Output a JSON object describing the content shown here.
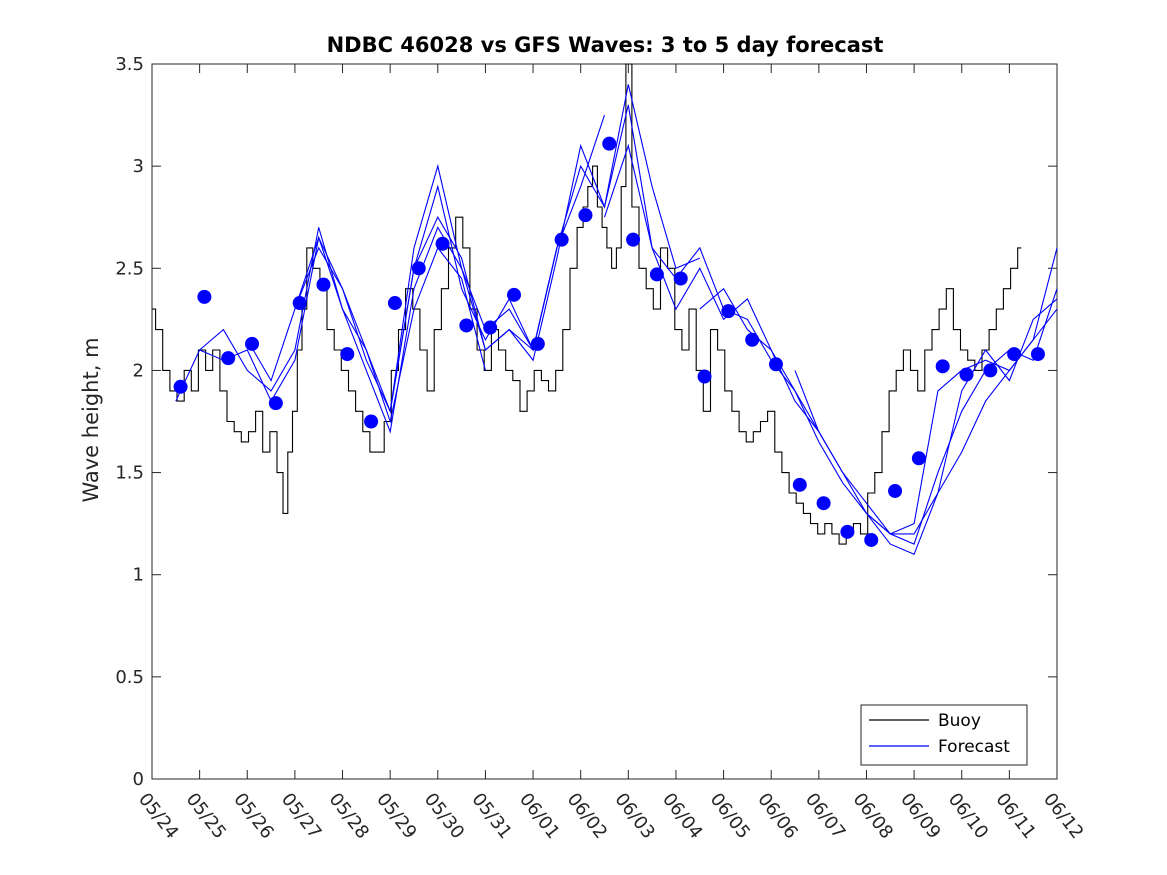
{
  "chart_data": {
    "type": "line",
    "title": "NDBC 46028 vs GFS Waves: 3 to 5 day forecast",
    "xlabel": "",
    "ylabel": "Wave height, m",
    "xlim": [
      "05/24",
      "06/12"
    ],
    "ylim": [
      0,
      3.5
    ],
    "x_tick_labels": [
      "05/24",
      "05/25",
      "05/26",
      "05/27",
      "05/28",
      "05/29",
      "05/30",
      "05/31",
      "06/01",
      "06/02",
      "06/03",
      "06/04",
      "06/05",
      "06/06",
      "06/07",
      "06/08",
      "06/09",
      "06/10",
      "06/11",
      "06/12"
    ],
    "y_ticks": [
      0,
      0.5,
      1,
      1.5,
      2,
      2.5,
      3,
      3.5
    ],
    "y_tick_labels": [
      "0",
      "0.5",
      "1",
      "1.5",
      "2",
      "2.5",
      "3",
      "3.5"
    ],
    "legend": {
      "position": "bottom-right",
      "entries": [
        "Buoy",
        "Forecast"
      ]
    },
    "colors": {
      "buoy": "#000000",
      "forecast": "#0000ff",
      "axis": "#262626"
    },
    "series": [
      {
        "name": "Buoy",
        "x_days": [
          0.0,
          0.15,
          0.3,
          0.45,
          0.6,
          0.75,
          0.9,
          1.05,
          1.2,
          1.35,
          1.5,
          1.65,
          1.8,
          1.95,
          2.1,
          2.25,
          2.4,
          2.55,
          2.7,
          2.8,
          2.9,
          3.0,
          3.1,
          3.2,
          3.3,
          3.45,
          3.6,
          3.75,
          3.9,
          4.05,
          4.2,
          4.35,
          4.5,
          4.65,
          4.8,
          4.95,
          5.1,
          5.25,
          5.4,
          5.55,
          5.7,
          5.85,
          6.0,
          6.15,
          6.3,
          6.45,
          6.6,
          6.75,
          6.9,
          7.05,
          7.2,
          7.35,
          7.5,
          7.65,
          7.8,
          7.95,
          8.1,
          8.25,
          8.4,
          8.55,
          8.7,
          8.85,
          9.0,
          9.1,
          9.2,
          9.3,
          9.4,
          9.5,
          9.6,
          9.7,
          9.8,
          9.9,
          10.0,
          10.15,
          10.3,
          10.45,
          10.6,
          10.75,
          10.9,
          11.05,
          11.2,
          11.35,
          11.5,
          11.65,
          11.8,
          11.95,
          12.1,
          12.25,
          12.4,
          12.55,
          12.7,
          12.85,
          13.0,
          13.15,
          13.3,
          13.45,
          13.6,
          13.75,
          13.9,
          14.05,
          14.2,
          14.35,
          14.5,
          14.65,
          14.8,
          14.95,
          15.1,
          15.25,
          15.4,
          15.55,
          15.7,
          15.85,
          16.0,
          16.15,
          16.3,
          16.45,
          16.6,
          16.75,
          16.9,
          17.05,
          17.2,
          17.35,
          17.5,
          17.65,
          17.8,
          17.95,
          18.1,
          18.25
        ],
        "values": [
          2.3,
          2.2,
          2.0,
          1.9,
          1.85,
          2.0,
          1.9,
          2.1,
          2.0,
          2.1,
          1.9,
          1.75,
          1.7,
          1.65,
          1.7,
          1.8,
          1.6,
          1.7,
          1.5,
          1.3,
          1.6,
          1.8,
          2.1,
          2.3,
          2.6,
          2.5,
          2.4,
          2.2,
          2.1,
          2.0,
          1.9,
          1.8,
          1.7,
          1.6,
          1.6,
          1.75,
          2.0,
          2.2,
          2.4,
          2.3,
          2.1,
          1.9,
          2.2,
          2.4,
          2.6,
          2.75,
          2.6,
          2.3,
          2.1,
          2.0,
          2.2,
          2.1,
          2.0,
          1.95,
          1.8,
          1.9,
          2.0,
          1.95,
          1.9,
          2.0,
          2.2,
          2.5,
          2.7,
          2.8,
          2.9,
          3.0,
          2.8,
          2.7,
          2.6,
          2.5,
          2.6,
          2.9,
          3.5,
          2.8,
          2.5,
          2.4,
          2.3,
          2.6,
          2.5,
          2.2,
          2.1,
          2.3,
          2.0,
          1.8,
          2.2,
          2.1,
          1.9,
          1.8,
          1.7,
          1.65,
          1.7,
          1.75,
          1.8,
          1.6,
          1.5,
          1.4,
          1.35,
          1.3,
          1.25,
          1.2,
          1.25,
          1.2,
          1.15,
          1.2,
          1.25,
          1.2,
          1.4,
          1.5,
          1.7,
          1.9,
          2.0,
          2.1,
          2.0,
          1.9,
          2.1,
          2.2,
          2.3,
          2.4,
          2.2,
          2.1,
          2.05,
          2.0,
          2.1,
          2.2,
          2.3,
          2.4,
          2.5,
          2.6
        ],
        "comment_removed": ""
      },
      {
        "name": "Forecast",
        "runs": [
          {
            "x_days": [
              0.5,
              1.0,
              1.5,
              2.0,
              2.5,
              3.0,
              3.5,
              4.0,
              4.5,
              5.0,
              5.5,
              6.0,
              6.5,
              7.0
            ],
            "values": [
              1.85,
              2.1,
              2.05,
              2.1,
              1.85,
              2.05,
              2.65,
              2.4,
              2.1,
              1.75,
              2.3,
              2.6,
              2.45,
              2.0
            ]
          },
          {
            "x_days": [
              1.0,
              1.5,
              2.0,
              2.5,
              3.0,
              3.5,
              4.0,
              4.5,
              5.0,
              5.5,
              6.0,
              6.5,
              7.0,
              7.5,
              8.0,
              8.5
            ],
            "values": [
              2.1,
              2.2,
              2.0,
              1.9,
              2.1,
              2.7,
              2.3,
              2.0,
              1.7,
              2.4,
              2.7,
              2.5,
              2.1,
              2.2,
              2.1,
              2.6
            ]
          },
          {
            "x_days": [
              2.0,
              2.5,
              3.0,
              3.5,
              4.0,
              4.5,
              5.0,
              5.5,
              6.0,
              6.5,
              7.0,
              7.5,
              8.0,
              8.5,
              9.0,
              9.5
            ],
            "values": [
              2.15,
              1.95,
              2.3,
              2.65,
              2.3,
              2.1,
              1.8,
              2.5,
              2.9,
              2.4,
              2.15,
              2.35,
              2.1,
              2.6,
              2.9,
              3.25
            ]
          },
          {
            "x_days": [
              3.0,
              3.5,
              4.0,
              4.5,
              5.0,
              5.5,
              6.0,
              6.5,
              7.0,
              7.5,
              8.0,
              8.5,
              9.0,
              9.5,
              10.0,
              10.5,
              11.0,
              11.5
            ],
            "values": [
              2.3,
              2.6,
              2.4,
              2.05,
              1.8,
              2.6,
              3.0,
              2.5,
              2.2,
              2.3,
              2.1,
              2.6,
              3.0,
              2.8,
              3.4,
              2.9,
              2.5,
              2.55
            ]
          },
          {
            "x_days": [
              5.0,
              5.5,
              6.0,
              6.5,
              7.0,
              7.5,
              8.0,
              8.5,
              9.0,
              9.5,
              10.0,
              10.5,
              11.0,
              11.5,
              12.0,
              12.5,
              13.0,
              13.5,
              14.0
            ],
            "values": [
              1.8,
              2.5,
              2.75,
              2.55,
              2.1,
              2.2,
              2.05,
              2.55,
              3.1,
              2.8,
              3.3,
              2.6,
              2.45,
              2.6,
              2.3,
              2.25,
              2.05,
              1.9,
              1.7
            ]
          },
          {
            "x_days": [
              9.5,
              10.0,
              10.5,
              11.0,
              11.5,
              12.0,
              12.5,
              13.0,
              13.5,
              14.0,
              14.5,
              15.0,
              15.5,
              16.0,
              16.5,
              17.0,
              17.5,
              18.0,
              18.5,
              19.0
            ],
            "values": [
              2.75,
              3.1,
              2.6,
              2.3,
              2.5,
              2.25,
              2.35,
              2.1,
              1.9,
              1.65,
              1.45,
              1.3,
              1.2,
              1.2,
              1.4,
              1.6,
              1.85,
              2.0,
              2.15,
              2.3
            ]
          },
          {
            "x_days": [
              11.5,
              12.0,
              12.5,
              13.0,
              13.5,
              14.0,
              14.5,
              15.0,
              15.5,
              16.0,
              16.5,
              17.0,
              17.5,
              18.0,
              18.5,
              19.0
            ],
            "values": [
              2.3,
              2.4,
              2.2,
              2.1,
              1.85,
              1.7,
              1.5,
              1.35,
              1.2,
              1.15,
              1.5,
              1.8,
              2.0,
              2.1,
              2.05,
              2.4
            ]
          },
          {
            "x_days": [
              13.5,
              14.0,
              14.5,
              15.0,
              15.5,
              16.0,
              16.5,
              17.0,
              17.5,
              18.0,
              18.5,
              19.0
            ],
            "values": [
              2.0,
              1.7,
              1.5,
              1.3,
              1.2,
              1.25,
              1.9,
              2.0,
              2.05,
              2.0,
              2.15,
              2.6
            ]
          },
          {
            "x_days": [
              15.0,
              15.5,
              16.0,
              16.5,
              17.0,
              17.5,
              18.0,
              18.5,
              19.0
            ],
            "values": [
              1.3,
              1.15,
              1.1,
              1.4,
              1.9,
              2.1,
              1.95,
              2.25,
              2.35
            ]
          }
        ],
        "points_x_days": [
          0.6,
          1.1,
          1.6,
          2.1,
          2.6,
          3.1,
          3.6,
          4.1,
          4.6,
          5.1,
          5.6,
          6.1,
          6.6,
          7.1,
          7.6,
          8.1,
          8.6,
          9.1,
          9.6,
          10.1,
          10.6,
          11.1,
          11.6,
          12.1,
          12.6,
          13.1,
          13.6,
          14.1,
          14.6,
          15.1,
          15.6,
          16.1,
          16.6,
          17.1,
          17.6,
          18.1,
          18.6
        ],
        "points_values": [
          1.92,
          2.36,
          2.06,
          2.13,
          1.84,
          2.33,
          2.42,
          2.08,
          1.75,
          2.33,
          2.5,
          2.62,
          2.22,
          2.21,
          2.37,
          2.13,
          2.64,
          2.76,
          3.11,
          2.64,
          2.47,
          2.45,
          1.97,
          2.29,
          2.15,
          2.03,
          1.44,
          1.35,
          1.21,
          1.17,
          1.41,
          1.57,
          2.02,
          1.98,
          2.0,
          2.08,
          2.08
        ]
      }
    ]
  }
}
